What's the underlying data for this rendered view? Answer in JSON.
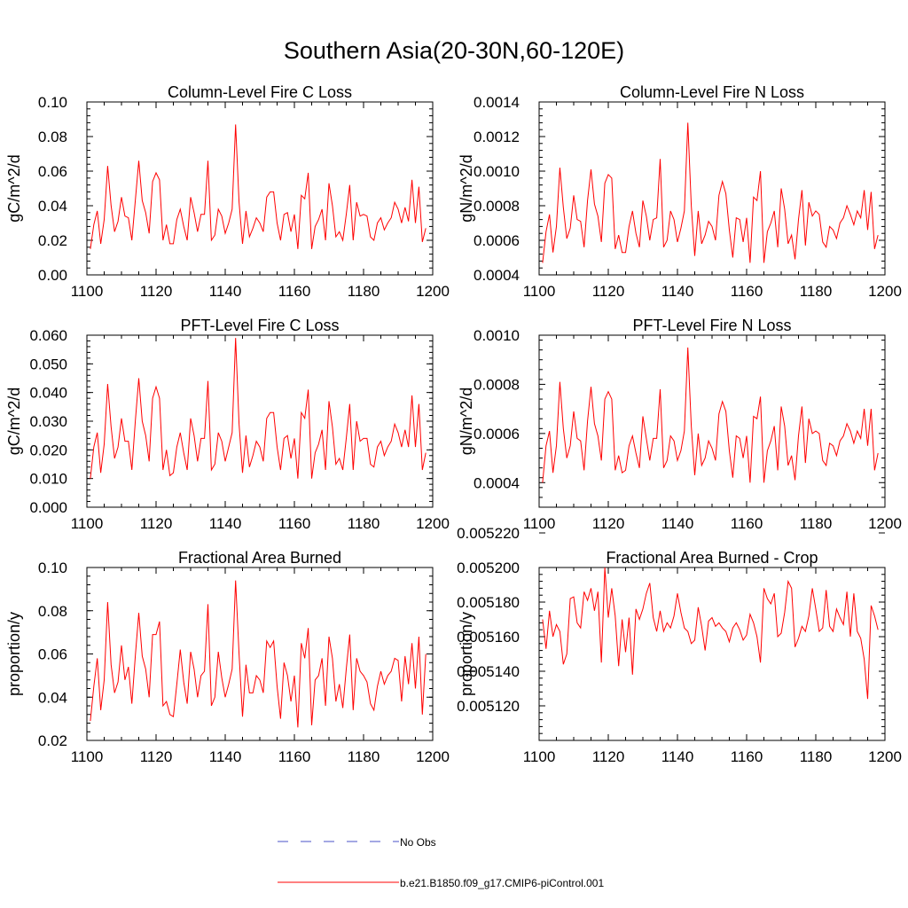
{
  "figure": {
    "title": "Southern Asia(20-30N,60-120E)"
  },
  "colors": {
    "series": "#ff0000",
    "obs": "#4a52c8",
    "axis": "#000000"
  },
  "legend": {
    "obs_label": "No Obs",
    "model_label": "b.e21.B1850.f09_g17.CMIP6-piControl.001"
  },
  "chart_data": [
    {
      "type": "line",
      "title": "Column-Level Fire C Loss",
      "xlabel": "",
      "ylabel": "gC/m^2/d",
      "xlim": [
        1100,
        1200
      ],
      "ylim": [
        0.0,
        0.1
      ],
      "xticks": [
        1100,
        1120,
        1140,
        1160,
        1180,
        1200
      ],
      "xtick_labels": [
        "1100",
        "1120",
        "1140",
        "1160",
        "1180",
        "1200"
      ],
      "yticks": [
        0.0,
        0.02,
        0.04,
        0.06,
        0.08,
        0.1
      ],
      "ytick_labels": [
        "0.00",
        "0.02",
        "0.04",
        "0.06",
        "0.08",
        "0.10"
      ],
      "x_start": 1101,
      "series": [
        {
          "name": "b.e21.B1850.f09_g17.CMIP6-piControl.001",
          "values": [
            0.015,
            0.029,
            0.037,
            0.018,
            0.032,
            0.063,
            0.04,
            0.025,
            0.031,
            0.045,
            0.034,
            0.033,
            0.02,
            0.043,
            0.066,
            0.043,
            0.036,
            0.024,
            0.054,
            0.059,
            0.055,
            0.02,
            0.029,
            0.018,
            0.018,
            0.032,
            0.038,
            0.028,
            0.02,
            0.045,
            0.036,
            0.025,
            0.035,
            0.035,
            0.066,
            0.02,
            0.023,
            0.038,
            0.034,
            0.024,
            0.03,
            0.038,
            0.087,
            0.042,
            0.018,
            0.037,
            0.022,
            0.027,
            0.033,
            0.03,
            0.025,
            0.045,
            0.048,
            0.048,
            0.03,
            0.02,
            0.035,
            0.036,
            0.025,
            0.035,
            0.015,
            0.046,
            0.044,
            0.059,
            0.015,
            0.028,
            0.032,
            0.038,
            0.02,
            0.053,
            0.04,
            0.022,
            0.025,
            0.02,
            0.035,
            0.052,
            0.02,
            0.042,
            0.034,
            0.035,
            0.034,
            0.022,
            0.02,
            0.03,
            0.033,
            0.026,
            0.03,
            0.033,
            0.042,
            0.038,
            0.03,
            0.039,
            0.031,
            0.055,
            0.03,
            0.051,
            0.019,
            0.027
          ]
        }
      ]
    },
    {
      "type": "line",
      "title": "Column-Level Fire N Loss",
      "xlabel": "",
      "ylabel": "gN/m^2/d",
      "xlim": [
        1100,
        1200
      ],
      "ylim": [
        0.0004,
        0.0014
      ],
      "xticks": [
        1100,
        1120,
        1140,
        1160,
        1180,
        1200
      ],
      "xtick_labels": [
        "1100",
        "1120",
        "1140",
        "1160",
        "1180",
        "1200"
      ],
      "yticks": [
        0.0004,
        0.0006,
        0.0008,
        0.001,
        0.0012,
        0.0014
      ],
      "ytick_labels": [
        "0.0004",
        "0.0006",
        "0.0008",
        "0.0010",
        "0.0012",
        "0.0014"
      ],
      "x_start": 1101,
      "series": [
        {
          "name": "b.e21.B1850.f09_g17.CMIP6-piControl.001",
          "values": [
            0.00047,
            0.00065,
            0.00075,
            0.00053,
            0.00068,
            0.00102,
            0.00079,
            0.00061,
            0.00067,
            0.00086,
            0.00072,
            0.00071,
            0.00056,
            0.00083,
            0.00101,
            0.00081,
            0.00074,
            0.00059,
            0.00093,
            0.00098,
            0.00096,
            0.00055,
            0.00063,
            0.00053,
            0.00053,
            0.00068,
            0.00077,
            0.00064,
            0.00056,
            0.00083,
            0.00074,
            0.0006,
            0.00072,
            0.00073,
            0.00107,
            0.00056,
            0.0006,
            0.00077,
            0.00072,
            0.00059,
            0.00067,
            0.00077,
            0.00128,
            0.0008,
            0.00051,
            0.00077,
            0.00058,
            0.00063,
            0.00071,
            0.00068,
            0.0006,
            0.00086,
            0.00094,
            0.00087,
            0.00066,
            0.0005,
            0.00073,
            0.00072,
            0.00059,
            0.00073,
            0.00047,
            0.00085,
            0.00083,
            0.001,
            0.00047,
            0.00065,
            0.0007,
            0.00077,
            0.00056,
            0.0009,
            0.00078,
            0.00058,
            0.00063,
            0.00049,
            0.00072,
            0.00089,
            0.00057,
            0.00082,
            0.00074,
            0.00077,
            0.00075,
            0.00059,
            0.00056,
            0.00068,
            0.00066,
            0.00061,
            0.0007,
            0.00073,
            0.0008,
            0.00075,
            0.00069,
            0.00077,
            0.00073,
            0.00089,
            0.00066,
            0.00088,
            0.00055,
            0.00063
          ]
        }
      ]
    },
    {
      "type": "line",
      "title": "PFT-Level Fire C Loss",
      "xlabel": "",
      "ylabel": "gC/m^2/d",
      "xlim": [
        1100,
        1200
      ],
      "ylim": [
        0.0,
        0.06
      ],
      "xticks": [
        1100,
        1120,
        1140,
        1160,
        1180,
        1200
      ],
      "xtick_labels": [
        "1100",
        "1120",
        "1140",
        "1160",
        "1180",
        "1200"
      ],
      "yticks": [
        0.0,
        0.01,
        0.02,
        0.03,
        0.04,
        0.05,
        0.06
      ],
      "ytick_labels": [
        "0.000",
        "0.010",
        "0.020",
        "0.030",
        "0.040",
        "0.050",
        "0.060"
      ],
      "x_start": 1101,
      "series": [
        {
          "name": "b.e21.B1850.f09_g17.CMIP6-piControl.001",
          "values": [
            0.01,
            0.021,
            0.026,
            0.012,
            0.022,
            0.043,
            0.028,
            0.017,
            0.021,
            0.031,
            0.023,
            0.023,
            0.013,
            0.03,
            0.045,
            0.03,
            0.025,
            0.016,
            0.038,
            0.042,
            0.038,
            0.013,
            0.02,
            0.011,
            0.012,
            0.021,
            0.026,
            0.019,
            0.013,
            0.031,
            0.025,
            0.016,
            0.024,
            0.024,
            0.044,
            0.013,
            0.015,
            0.026,
            0.023,
            0.016,
            0.021,
            0.026,
            0.059,
            0.029,
            0.012,
            0.025,
            0.014,
            0.018,
            0.023,
            0.021,
            0.016,
            0.031,
            0.033,
            0.033,
            0.021,
            0.013,
            0.024,
            0.025,
            0.017,
            0.024,
            0.01,
            0.033,
            0.031,
            0.041,
            0.01,
            0.019,
            0.022,
            0.027,
            0.013,
            0.037,
            0.028,
            0.015,
            0.017,
            0.013,
            0.024,
            0.036,
            0.013,
            0.03,
            0.023,
            0.024,
            0.024,
            0.015,
            0.014,
            0.021,
            0.023,
            0.018,
            0.021,
            0.023,
            0.029,
            0.026,
            0.021,
            0.027,
            0.021,
            0.039,
            0.021,
            0.036,
            0.013,
            0.019
          ]
        }
      ]
    },
    {
      "type": "line",
      "title": "PFT-Level Fire N Loss",
      "xlabel": "",
      "ylabel": "gN/m^2/d",
      "xlim": [
        1100,
        1200
      ],
      "ylim": [
        0.0003,
        0.001
      ],
      "xticks": [
        1100,
        1120,
        1140,
        1160,
        1180,
        1200
      ],
      "xtick_labels": [
        "1100",
        "1120",
        "1140",
        "1160",
        "1180",
        "1200"
      ],
      "yticks": [
        0.0004,
        0.0006,
        0.0008,
        0.001
      ],
      "ytick_labels": [
        "0.0004",
        "0.0006",
        "0.0008",
        "0.0010"
      ],
      "x_start": 1101,
      "series": [
        {
          "name": "b.e21.B1850.f09_g17.CMIP6-piControl.001",
          "values": [
            0.0004,
            0.00055,
            0.00061,
            0.00044,
            0.00055,
            0.00081,
            0.00062,
            0.0005,
            0.00055,
            0.00069,
            0.00058,
            0.00057,
            0.00045,
            0.00065,
            0.00079,
            0.00064,
            0.00059,
            0.00049,
            0.00074,
            0.00077,
            0.00074,
            0.00045,
            0.00051,
            0.00044,
            0.00045,
            0.00055,
            0.00059,
            0.00052,
            0.00046,
            0.00067,
            0.00058,
            0.00049,
            0.00058,
            0.00058,
            0.00078,
            0.00046,
            0.00049,
            0.00059,
            0.00057,
            0.00049,
            0.00053,
            0.00061,
            0.00095,
            0.00063,
            0.00043,
            0.0006,
            0.00047,
            0.0005,
            0.00057,
            0.00054,
            0.00049,
            0.00068,
            0.00073,
            0.00069,
            0.00053,
            0.00042,
            0.00059,
            0.00058,
            0.0005,
            0.00059,
            0.0004,
            0.00067,
            0.00066,
            0.00075,
            0.0004,
            0.00053,
            0.00057,
            0.00063,
            0.00045,
            0.00071,
            0.00063,
            0.00047,
            0.00051,
            0.00041,
            0.00059,
            0.00071,
            0.00048,
            0.00066,
            0.0006,
            0.00061,
            0.0006,
            0.00049,
            0.00047,
            0.00056,
            0.00055,
            0.00051,
            0.00057,
            0.00059,
            0.00064,
            0.00061,
            0.00056,
            0.00061,
            0.00058,
            0.0007,
            0.00055,
            0.0007,
            0.00045,
            0.00052
          ]
        }
      ]
    },
    {
      "type": "line",
      "title": "Fractional Area Burned",
      "xlabel": "",
      "ylabel": "proportion/y",
      "xlim": [
        1100,
        1200
      ],
      "ylim": [
        0.02,
        0.1
      ],
      "xticks": [
        1100,
        1120,
        1140,
        1160,
        1180,
        1200
      ],
      "xtick_labels": [
        "1100",
        "1120",
        "1140",
        "1160",
        "1180",
        "1200"
      ],
      "yticks": [
        0.02,
        0.04,
        0.06,
        0.08,
        0.1
      ],
      "ytick_labels": [
        "0.02",
        "0.04",
        "0.06",
        "0.08",
        "0.10"
      ],
      "x_start": 1101,
      "series": [
        {
          "name": "b.e21.B1850.f09_g17.CMIP6-piControl.001",
          "values": [
            0.029,
            0.045,
            0.058,
            0.034,
            0.048,
            0.084,
            0.055,
            0.042,
            0.047,
            0.064,
            0.048,
            0.054,
            0.037,
            0.059,
            0.079,
            0.059,
            0.053,
            0.04,
            0.069,
            0.069,
            0.075,
            0.036,
            0.038,
            0.032,
            0.031,
            0.046,
            0.062,
            0.047,
            0.037,
            0.061,
            0.053,
            0.04,
            0.05,
            0.052,
            0.083,
            0.036,
            0.04,
            0.061,
            0.049,
            0.04,
            0.046,
            0.053,
            0.094,
            0.06,
            0.031,
            0.055,
            0.042,
            0.042,
            0.05,
            0.048,
            0.042,
            0.066,
            0.063,
            0.066,
            0.045,
            0.03,
            0.056,
            0.05,
            0.038,
            0.05,
            0.026,
            0.065,
            0.058,
            0.072,
            0.027,
            0.048,
            0.05,
            0.058,
            0.036,
            0.068,
            0.058,
            0.038,
            0.046,
            0.035,
            0.053,
            0.069,
            0.034,
            0.058,
            0.052,
            0.05,
            0.047,
            0.037,
            0.034,
            0.045,
            0.052,
            0.046,
            0.05,
            0.052,
            0.058,
            0.057,
            0.038,
            0.059,
            0.046,
            0.065,
            0.044,
            0.068,
            0.032,
            0.06
          ]
        }
      ]
    },
    {
      "type": "line",
      "title": "Fractional Area Burned - Crop",
      "xlabel": "",
      "ylabel": "proportion/y",
      "xlim": [
        1100,
        1200
      ],
      "ylim": [
        0.0051,
        0.0052
      ],
      "xticks": [
        1100,
        1120,
        1140,
        1160,
        1180,
        1200
      ],
      "xtick_labels": [
        "1100",
        "1120",
        "1140",
        "1160",
        "1180",
        "1200"
      ],
      "yticks": [
        0.0051,
        0.00512,
        0.00514,
        0.00516,
        0.00518,
        0.0052,
        0.00522
      ],
      "ytick_labels": [
        "",
        "0.005120",
        "0.005140",
        "0.005160",
        "0.005180",
        "0.005200",
        "0.005220"
      ],
      "x_start": 1101,
      "series": [
        {
          "name": "b.e21.B1850.f09_g17.CMIP6-piControl.001",
          "values": [
            0.00517,
            0.005153,
            0.005175,
            0.00516,
            0.005167,
            0.005163,
            0.005144,
            0.00515,
            0.005182,
            0.005183,
            0.005168,
            0.005165,
            0.005186,
            0.005181,
            0.005188,
            0.005175,
            0.005186,
            0.005145,
            0.0052,
            0.005171,
            0.005188,
            0.005172,
            0.005143,
            0.00517,
            0.005151,
            0.005171,
            0.005138,
            0.005176,
            0.00517,
            0.005176,
            0.005185,
            0.005191,
            0.005171,
            0.005163,
            0.005175,
            0.005163,
            0.005168,
            0.005165,
            0.005172,
            0.005185,
            0.005174,
            0.005165,
            0.005163,
            0.005156,
            0.005158,
            0.005177,
            0.005166,
            0.005152,
            0.005169,
            0.005171,
            0.005166,
            0.005168,
            0.005165,
            0.005163,
            0.005157,
            0.005165,
            0.005168,
            0.005164,
            0.005158,
            0.005161,
            0.005173,
            0.005168,
            0.00516,
            0.005145,
            0.005188,
            0.005182,
            0.005179,
            0.005185,
            0.00516,
            0.005162,
            0.005174,
            0.005192,
            0.005188,
            0.005154,
            0.005159,
            0.005166,
            0.005163,
            0.005172,
            0.005188,
            0.005176,
            0.005163,
            0.005165,
            0.005187,
            0.005166,
            0.005163,
            0.005176,
            0.005171,
            0.005167,
            0.005186,
            0.00516,
            0.005185,
            0.005163,
            0.005159,
            0.005147,
            0.005124,
            0.005178,
            0.005172,
            0.005164
          ]
        }
      ]
    }
  ]
}
